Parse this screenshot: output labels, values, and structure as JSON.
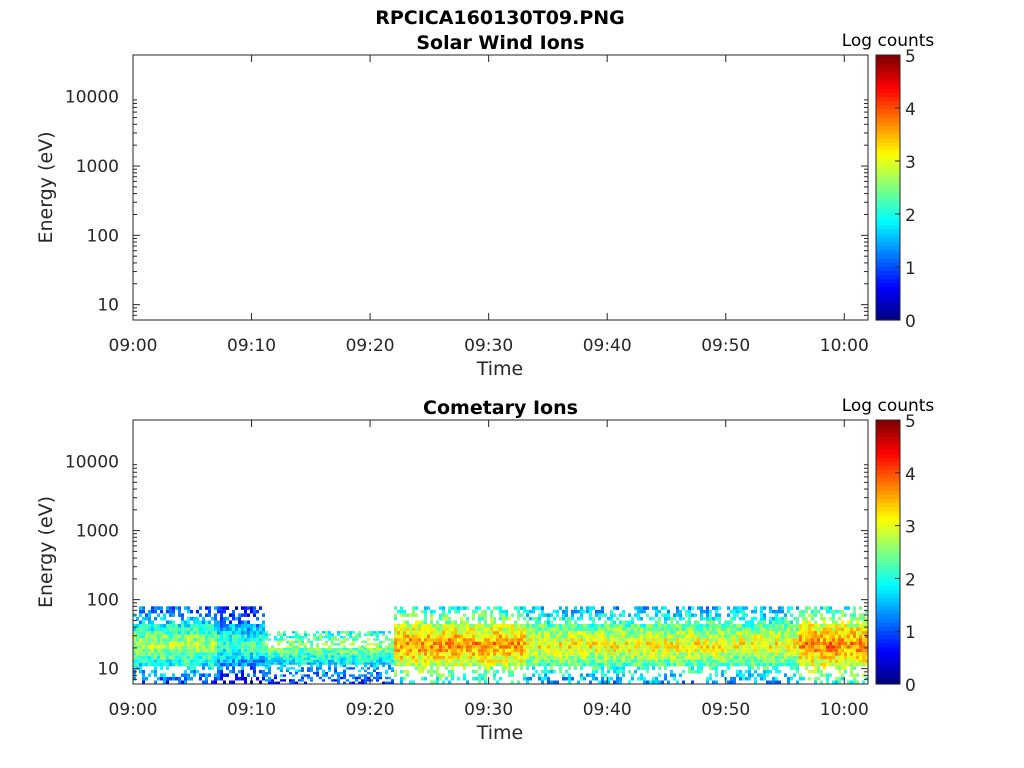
{
  "figure": {
    "title": "RPCICA160130T09.PNG"
  },
  "chart_data": [
    {
      "type": "heatmap",
      "title": "Solar Wind Ions",
      "xlabel": "Time",
      "ylabel": "Energy (eV)",
      "x_ticks": [
        "09:00",
        "09:10",
        "09:20",
        "09:30",
        "09:40",
        "09:50",
        "10:00"
      ],
      "x_range": [
        "09:00",
        "10:02"
      ],
      "y_scale": "log",
      "y_ticks": [
        10,
        100,
        1000,
        10000
      ],
      "y_tick_labels": [
        "10",
        "100",
        "1000",
        "10000"
      ],
      "y_range": [
        6,
        40000
      ],
      "colorbar": {
        "label": "Log counts",
        "range": [
          0,
          5
        ],
        "ticks": [
          "0",
          "1",
          "2",
          "3",
          "4",
          "5"
        ],
        "colormap": "jet"
      },
      "bands": [],
      "note": ""
    },
    {
      "type": "heatmap",
      "title": "Cometary Ions",
      "xlabel": "Time",
      "ylabel": "Energy (eV)",
      "x_ticks": [
        "09:00",
        "09:10",
        "09:20",
        "09:30",
        "09:40",
        "09:50",
        "10:00"
      ],
      "x_range": [
        "09:00",
        "10:02"
      ],
      "y_scale": "log",
      "y_ticks": [
        10,
        100,
        1000,
        10000
      ],
      "y_tick_labels": [
        "10",
        "100",
        "1000",
        "10000"
      ],
      "y_range": [
        6,
        40000
      ],
      "colorbar": {
        "label": "Log counts",
        "range": [
          0,
          5
        ],
        "ticks": [
          "0",
          "1",
          "2",
          "3",
          "4",
          "5"
        ],
        "colormap": "jet"
      },
      "segments": [
        {
          "start": "09:00",
          "end": "09:07",
          "emax": 80,
          "peak": 2.8
        },
        {
          "start": "09:07",
          "end": "09:11",
          "emax": 80,
          "peak": 2.3
        },
        {
          "start": "09:11",
          "end": "09:22",
          "emax": 35,
          "peak": 2.6
        },
        {
          "start": "09:22",
          "end": "09:33",
          "emax": 80,
          "peak": 3.7
        },
        {
          "start": "09:33",
          "end": "09:56",
          "emax": 80,
          "peak": 3.2
        },
        {
          "start": "09:56",
          "end": "10:02",
          "emax": 80,
          "peak": 3.8
        }
      ],
      "emin": 6,
      "peak_energy": 22
    }
  ]
}
